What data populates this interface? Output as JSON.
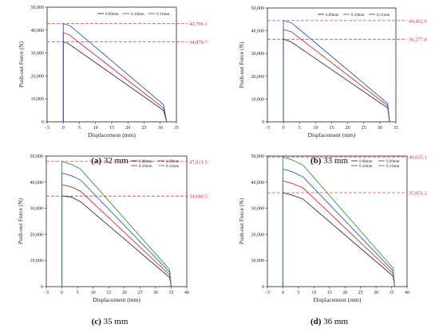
{
  "chart_data": [
    {
      "type": "line",
      "caption_letter": "(a)",
      "caption_text": " 32 mm",
      "xlabel": "Displacement (mm)",
      "ylabel": "Push-out Force (N)",
      "xlim": [
        -5,
        35
      ],
      "ylim": [
        0,
        50000
      ],
      "xticks": [
        "−5",
        "0",
        "5",
        "10",
        "15",
        "20",
        "25",
        "30",
        "35"
      ],
      "yticks": [
        "0",
        "10,000",
        "20,000",
        "30,000",
        "40,000",
        "50,000"
      ],
      "grid": false,
      "legend_position": "top",
      "series": [
        {
          "name": "0.09mm",
          "color": "#333333",
          "points": [
            [
              0,
              0
            ],
            [
              0,
              34879
            ],
            [
              1.5,
              34200
            ],
            [
              31,
              5000
            ],
            [
              32,
              0
            ]
          ]
        },
        {
          "name": "0.10mm",
          "color": "#e0232b",
          "points": [
            [
              0,
              0
            ],
            [
              0,
              38900
            ],
            [
              1.8,
              38000
            ],
            [
              31,
              6000
            ],
            [
              32,
              0
            ]
          ]
        },
        {
          "name": "0.11mm",
          "color": "#1f5fd6",
          "points": [
            [
              0,
              0
            ],
            [
              0,
              42796
            ],
            [
              2.2,
              41800
            ],
            [
              31,
              7500
            ],
            [
              32,
              0
            ]
          ]
        }
      ],
      "reference_lines": [
        {
          "y": 42796.1,
          "label": "42,796.1"
        },
        {
          "y": 34878.7,
          "label": "34,878.7"
        }
      ]
    },
    {
      "type": "line",
      "caption_letter": "(b)",
      "caption_text": " 33 mm",
      "xlabel": "Displacement (mm)",
      "ylabel": "Push-out Force (N)",
      "xlim": [
        -5,
        35
      ],
      "ylim": [
        0,
        50000
      ],
      "xticks": [
        "−5",
        "0",
        "5",
        "10",
        "15",
        "20",
        "25",
        "30",
        "35"
      ],
      "yticks": [
        "0",
        "10,000",
        "20,000",
        "30,000",
        "40,000",
        "50,000"
      ],
      "grid": false,
      "legend_position": "top",
      "series": [
        {
          "name": "0.09mm",
          "color": "#333333",
          "points": [
            [
              0,
              0
            ],
            [
              0,
              36278
            ],
            [
              2.5,
              35000
            ],
            [
              32.5,
              6000
            ],
            [
              33,
              0
            ]
          ]
        },
        {
          "name": "0.10mm",
          "color": "#e0232b",
          "points": [
            [
              0,
              0
            ],
            [
              0,
              40500
            ],
            [
              2.5,
              39500
            ],
            [
              32.5,
              7000
            ],
            [
              33,
              0
            ]
          ]
        },
        {
          "name": "0.11mm",
          "color": "#1f5fd6",
          "points": [
            [
              0,
              0
            ],
            [
              0,
              44463
            ],
            [
              2.5,
              43500
            ],
            [
              32.5,
              8000
            ],
            [
              33,
              0
            ]
          ]
        }
      ],
      "reference_lines": [
        {
          "y": 44462.9,
          "label": "44,462.9"
        },
        {
          "y": 36277.8,
          "label": "36,277.8"
        }
      ]
    },
    {
      "type": "line",
      "caption_letter": "(c)",
      "caption_text": " 35 mm",
      "xlabel": "Displacement (mm)",
      "ylabel": "Push-out Force (N)",
      "xlim": [
        -5,
        40
      ],
      "ylim": [
        0,
        50000
      ],
      "xticks": [
        "−5",
        "0",
        "5",
        "10",
        "15",
        "20",
        "25",
        "30",
        "35",
        "40"
      ],
      "yticks": [
        "0",
        "10,000",
        "20,000",
        "30,000",
        "40,000",
        "50,000"
      ],
      "grid": false,
      "legend_position": "top",
      "series": [
        {
          "name": "0.08mm",
          "color": "#333333",
          "points": [
            [
              0,
              0
            ],
            [
              0,
              34687
            ],
            [
              3,
              34300
            ],
            [
              6,
              32500
            ],
            [
              34.5,
              3500
            ],
            [
              35,
              0
            ]
          ]
        },
        {
          "name": "0.09mm",
          "color": "#e0232b",
          "points": [
            [
              0,
              0
            ],
            [
              0,
              39000
            ],
            [
              3,
              38200
            ],
            [
              6,
              36500
            ],
            [
              34.5,
              4500
            ],
            [
              35,
              0
            ]
          ]
        },
        {
          "name": "0.10mm",
          "color": "#1f5fd6",
          "points": [
            [
              0,
              0
            ],
            [
              0,
              43500
            ],
            [
              3,
              42500
            ],
            [
              6,
              40800
            ],
            [
              34.5,
              5500
            ],
            [
              35,
              0
            ]
          ]
        },
        {
          "name": "0.11mm",
          "color": "#2ca02c",
          "points": [
            [
              0,
              0
            ],
            [
              0,
              47922
            ],
            [
              3,
              46800
            ],
            [
              6,
              45000
            ],
            [
              34.5,
              6500
            ],
            [
              35,
              0
            ]
          ]
        }
      ],
      "reference_lines": [
        {
          "y": 47921.5,
          "label": "47,921.5"
        },
        {
          "y": 34686.5,
          "label": "34,686.5"
        }
      ]
    },
    {
      "type": "line",
      "caption_letter": "(d)",
      "caption_text": " 36 mm",
      "xlabel": "Displacement (mm)",
      "ylabel": "Push-out Force (N)",
      "xlim": [
        -5,
        40
      ],
      "ylim": [
        0,
        50000
      ],
      "xticks": [
        "−5",
        "0",
        "5",
        "10",
        "15",
        "20",
        "25",
        "30",
        "35",
        "40"
      ],
      "yticks": [
        "0",
        "10,000",
        "20,000",
        "30,000",
        "40,000",
        "50,000"
      ],
      "grid": false,
      "legend_position": "top",
      "series": [
        {
          "name": "0.08mm",
          "color": "#333333",
          "points": [
            [
              0,
              0
            ],
            [
              0,
              35951
            ],
            [
              3,
              35000
            ],
            [
              6.5,
              33500
            ],
            [
              35.5,
              4000
            ],
            [
              36,
              0
            ]
          ]
        },
        {
          "name": "0.09mm",
          "color": "#e0232b",
          "points": [
            [
              0,
              0
            ],
            [
              0,
              40500
            ],
            [
              3,
              39500
            ],
            [
              6.5,
              37800
            ],
            [
              35.5,
              5000
            ],
            [
              36,
              0
            ]
          ]
        },
        {
          "name": "0.10mm",
          "color": "#1f5fd6",
          "points": [
            [
              0,
              0
            ],
            [
              0,
              45000
            ],
            [
              3,
              44000
            ],
            [
              6.5,
              42000
            ],
            [
              35.5,
              6000
            ],
            [
              36,
              0
            ]
          ]
        },
        {
          "name": "0.11mm",
          "color": "#2ca02c",
          "points": [
            [
              0,
              0
            ],
            [
              0,
              49635
            ],
            [
              3,
              48500
            ],
            [
              6.5,
              46500
            ],
            [
              35.5,
              7000
            ],
            [
              36,
              0
            ]
          ]
        }
      ],
      "reference_lines": [
        {
          "y": 49635.1,
          "label": "49,635.1"
        },
        {
          "y": 35951.2,
          "label": "35,951.2"
        }
      ]
    }
  ]
}
